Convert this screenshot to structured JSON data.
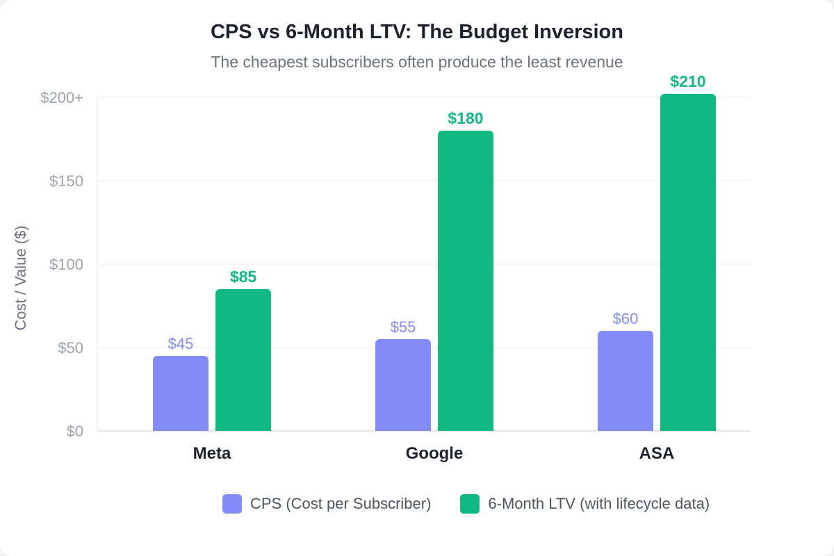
{
  "chart_data": {
    "type": "bar",
    "title": "CPS vs 6-Month LTV: The Budget Inversion",
    "subtitle": "The cheapest subscribers often produce the least revenue",
    "ylabel": "Cost / Value ($)",
    "xlabel": "",
    "ylim": [
      0,
      200
    ],
    "y_ticks": [
      {
        "value": 0,
        "label": "$0"
      },
      {
        "value": 50,
        "label": "$50"
      },
      {
        "value": 100,
        "label": "$100"
      },
      {
        "value": 150,
        "label": "$150"
      },
      {
        "value": 200,
        "label": "$200+"
      }
    ],
    "grid": true,
    "legend_position": "bottom-right",
    "categories": [
      "Meta",
      "Google",
      "ASA"
    ],
    "series": [
      {
        "name": "CPS (Cost per Subscriber)",
        "color": "#818cf8",
        "values": [
          45,
          55,
          60
        ],
        "labels": [
          "$45",
          "$55",
          "$60"
        ]
      },
      {
        "name": "6-Month LTV (with lifecycle data)",
        "color": "#10b981",
        "values": [
          85,
          180,
          210
        ],
        "labels": [
          "$85",
          "$180",
          "$210"
        ]
      }
    ]
  }
}
